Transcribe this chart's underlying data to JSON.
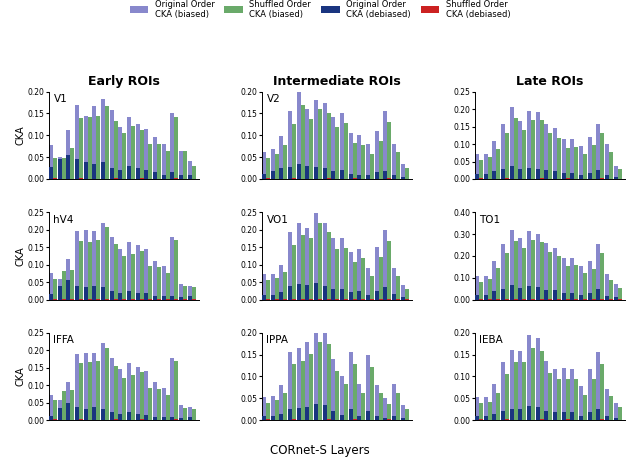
{
  "col_titles": [
    "Early ROIs",
    "Intermediate ROIs",
    "Late ROIs"
  ],
  "xlabel": "CORnet-S Layers",
  "subplot_labels": [
    [
      "V1",
      "V2",
      ""
    ],
    [
      "hV4",
      "VO1",
      "TO1"
    ],
    [
      "IFFA",
      "IPPA",
      "IEBA"
    ]
  ],
  "ylims": [
    [
      [
        0,
        0.2
      ],
      [
        0,
        0.25
      ],
      [
        0,
        0.25
      ]
    ],
    [
      [
        0,
        0.2
      ],
      [
        0,
        0.25
      ],
      [
        0,
        0.2
      ]
    ],
    [
      [
        0,
        0.25
      ],
      [
        0,
        0.4
      ],
      [
        0,
        0.2
      ]
    ]
  ],
  "ytick_step": [
    [
      [
        0.05,
        4
      ],
      [
        0.05,
        5
      ],
      [
        0.05,
        5
      ]
    ],
    [
      [
        0.05,
        4
      ],
      [
        0.05,
        5
      ],
      [
        0.05,
        4
      ]
    ],
    [
      [
        0.05,
        5
      ],
      [
        0.1,
        4
      ],
      [
        0.05,
        4
      ]
    ]
  ],
  "colors": {
    "orig_biased": "#8888CC",
    "shuf_biased": "#6aaa6a",
    "orig_debiased": "#1a3580",
    "shuf_debiased": "#cc2222"
  },
  "n_bars": 17,
  "data": {
    "V1": {
      "orig_biased": [
        0.078,
        0.05,
        0.112,
        0.17,
        0.145,
        0.168,
        0.182,
        0.157,
        0.12,
        0.143,
        0.125,
        0.115,
        0.095,
        0.08,
        0.15,
        0.065,
        0.042
      ],
      "shuf_biased": [
        0.048,
        0.048,
        0.07,
        0.14,
        0.143,
        0.145,
        0.168,
        0.133,
        0.106,
        0.122,
        0.113,
        0.08,
        0.08,
        0.063,
        0.143,
        0.063,
        0.03
      ],
      "orig_debiased": [
        0.028,
        0.045,
        0.055,
        0.045,
        0.04,
        0.035,
        0.04,
        0.025,
        0.02,
        0.03,
        0.025,
        0.02,
        0.015,
        0.01,
        0.015,
        0.01,
        0.01
      ],
      "shuf_debiased": [
        0.002,
        0.001,
        0.001,
        0.002,
        0.001,
        0.001,
        0.001,
        0.002,
        0.001,
        0.001,
        0.002,
        0.001,
        0.001,
        0.001,
        0.002,
        0.001,
        0.001
      ]
    },
    "V2": {
      "orig_biased": [
        0.075,
        0.06,
        0.115,
        0.195,
        0.2,
        0.195,
        0.22,
        0.18,
        0.145,
        0.165,
        0.155,
        0.145,
        0.11,
        0.095,
        0.18,
        0.045,
        0.04
      ],
      "shuf_biased": [
        0.058,
        0.082,
        0.085,
        0.168,
        0.165,
        0.17,
        0.208,
        0.158,
        0.125,
        0.13,
        0.14,
        0.095,
        0.093,
        0.076,
        0.17,
        0.038,
        0.035
      ],
      "orig_debiased": [
        0.015,
        0.038,
        0.055,
        0.04,
        0.035,
        0.04,
        0.035,
        0.025,
        0.02,
        0.025,
        0.02,
        0.018,
        0.01,
        0.01,
        0.01,
        0.008,
        0.01
      ],
      "shuf_debiased": [
        0.002,
        0.001,
        0.001,
        0.002,
        0.001,
        0.001,
        0.001,
        0.002,
        0.001,
        0.001,
        0.002,
        0.001,
        0.001,
        0.001,
        0.002,
        0.001,
        0.001
      ]
    },
    "V2b": {
      "orig_biased": [
        0.072,
        0.058,
        0.108,
        0.19,
        0.192,
        0.192,
        0.22,
        0.178,
        0.145,
        0.163,
        0.153,
        0.14,
        0.108,
        0.093,
        0.178,
        0.043,
        0.038
      ],
      "shuf_biased": [
        0.058,
        0.082,
        0.085,
        0.163,
        0.165,
        0.168,
        0.207,
        0.155,
        0.122,
        0.128,
        0.138,
        0.093,
        0.09,
        0.073,
        0.168,
        0.035,
        0.033
      ],
      "orig_debiased": [
        0.013,
        0.035,
        0.05,
        0.038,
        0.033,
        0.038,
        0.033,
        0.023,
        0.018,
        0.023,
        0.018,
        0.015,
        0.008,
        0.008,
        0.008,
        0.005,
        0.008
      ],
      "shuf_debiased": [
        0.002,
        0.001,
        0.001,
        0.002,
        0.001,
        0.001,
        0.001,
        0.002,
        0.001,
        0.001,
        0.002,
        0.001,
        0.001,
        0.001,
        0.002,
        0.001,
        0.001
      ]
    },
    "hV4": {
      "orig_biased": [
        0.062,
        0.068,
        0.098,
        0.155,
        0.198,
        0.16,
        0.18,
        0.175,
        0.143,
        0.15,
        0.105,
        0.1,
        0.08,
        0.11,
        0.155,
        0.08,
        0.035
      ],
      "shuf_biased": [
        0.048,
        0.058,
        0.078,
        0.127,
        0.17,
        0.138,
        0.16,
        0.152,
        0.118,
        0.128,
        0.082,
        0.078,
        0.058,
        0.088,
        0.13,
        0.062,
        0.025
      ],
      "orig_debiased": [
        0.012,
        0.018,
        0.025,
        0.028,
        0.035,
        0.03,
        0.028,
        0.025,
        0.018,
        0.02,
        0.012,
        0.01,
        0.008,
        0.015,
        0.018,
        0.01,
        0.004
      ],
      "shuf_debiased": [
        0.002,
        0.001,
        0.001,
        0.002,
        0.001,
        0.001,
        0.001,
        0.002,
        0.001,
        0.001,
        0.002,
        0.001,
        0.001,
        0.001,
        0.002,
        0.001,
        0.001
      ]
    },
    "VO1": {
      "orig_biased": [
        0.072,
        0.072,
        0.098,
        0.192,
        0.22,
        0.205,
        0.248,
        0.22,
        0.175,
        0.175,
        0.135,
        0.145,
        0.09,
        0.15,
        0.2,
        0.09,
        0.042
      ],
      "shuf_biased": [
        0.055,
        0.062,
        0.078,
        0.155,
        0.185,
        0.175,
        0.218,
        0.192,
        0.145,
        0.148,
        0.108,
        0.118,
        0.068,
        0.122,
        0.168,
        0.068,
        0.03
      ],
      "orig_debiased": [
        0.014,
        0.014,
        0.022,
        0.038,
        0.045,
        0.042,
        0.048,
        0.04,
        0.03,
        0.03,
        0.022,
        0.025,
        0.012,
        0.025,
        0.035,
        0.015,
        0.006
      ],
      "shuf_debiased": [
        0.002,
        0.001,
        0.001,
        0.002,
        0.001,
        0.001,
        0.001,
        0.002,
        0.001,
        0.001,
        0.002,
        0.001,
        0.001,
        0.001,
        0.002,
        0.001,
        0.001
      ]
    },
    "TO1": {
      "orig_biased": [
        0.052,
        0.055,
        0.08,
        0.155,
        0.165,
        0.178,
        0.21,
        0.205,
        0.14,
        0.102,
        0.155,
        0.082,
        0.15,
        0.08,
        0.05,
        0.082,
        0.035
      ],
      "shuf_biased": [
        0.04,
        0.045,
        0.062,
        0.128,
        0.135,
        0.152,
        0.18,
        0.175,
        0.112,
        0.082,
        0.128,
        0.062,
        0.122,
        0.062,
        0.038,
        0.062,
        0.025
      ],
      "orig_debiased": [
        0.01,
        0.01,
        0.015,
        0.025,
        0.028,
        0.03,
        0.038,
        0.035,
        0.022,
        0.012,
        0.025,
        0.01,
        0.022,
        0.01,
        0.006,
        0.01,
        0.004
      ],
      "shuf_debiased": [
        0.002,
        0.001,
        0.001,
        0.002,
        0.001,
        0.001,
        0.001,
        0.002,
        0.001,
        0.001,
        0.002,
        0.001,
        0.001,
        0.001,
        0.002,
        0.001,
        0.001
      ]
    },
    "IFFA": {
      "orig_biased": [
        0.072,
        0.072,
        0.108,
        0.158,
        0.205,
        0.165,
        0.195,
        0.192,
        0.158,
        0.145,
        0.115,
        0.115,
        0.095,
        0.12,
        0.158,
        0.1,
        0.038
      ],
      "shuf_biased": [
        0.055,
        0.062,
        0.085,
        0.132,
        0.175,
        0.14,
        0.17,
        0.168,
        0.132,
        0.118,
        0.09,
        0.092,
        0.072,
        0.098,
        0.132,
        0.078,
        0.028
      ],
      "orig_debiased": [
        0.014,
        0.014,
        0.022,
        0.028,
        0.038,
        0.028,
        0.032,
        0.03,
        0.025,
        0.022,
        0.018,
        0.018,
        0.012,
        0.018,
        0.025,
        0.012,
        0.005
      ],
      "shuf_debiased": [
        0.002,
        0.001,
        0.001,
        0.002,
        0.001,
        0.001,
        0.001,
        0.002,
        0.001,
        0.001,
        0.002,
        0.001,
        0.001,
        0.001,
        0.002,
        0.001,
        0.001
      ]
    },
    "IPPA": {
      "orig_biased": [
        0.108,
        0.108,
        0.175,
        0.255,
        0.32,
        0.282,
        0.312,
        0.302,
        0.258,
        0.238,
        0.188,
        0.192,
        0.155,
        0.175,
        0.255,
        0.115,
        0.072
      ],
      "shuf_biased": [
        0.082,
        0.092,
        0.145,
        0.212,
        0.27,
        0.238,
        0.272,
        0.262,
        0.218,
        0.198,
        0.155,
        0.158,
        0.122,
        0.142,
        0.212,
        0.088,
        0.055
      ],
      "orig_debiased": [
        0.022,
        0.022,
        0.038,
        0.048,
        0.065,
        0.055,
        0.062,
        0.058,
        0.045,
        0.042,
        0.032,
        0.032,
        0.022,
        0.03,
        0.048,
        0.018,
        0.01
      ],
      "shuf_debiased": [
        0.002,
        0.001,
        0.001,
        0.002,
        0.001,
        0.001,
        0.001,
        0.002,
        0.001,
        0.001,
        0.002,
        0.001,
        0.001,
        0.001,
        0.002,
        0.001,
        0.001
      ]
    },
    "IEBA": {
      "orig_biased": [
        0.052,
        0.052,
        0.082,
        0.132,
        0.16,
        0.158,
        0.195,
        0.188,
        0.135,
        0.118,
        0.12,
        0.118,
        0.078,
        0.118,
        0.155,
        0.072,
        0.04
      ],
      "shuf_biased": [
        0.04,
        0.042,
        0.062,
        0.105,
        0.132,
        0.132,
        0.165,
        0.158,
        0.108,
        0.095,
        0.095,
        0.095,
        0.058,
        0.095,
        0.128,
        0.055,
        0.03
      ],
      "orig_debiased": [
        0.01,
        0.01,
        0.015,
        0.022,
        0.025,
        0.025,
        0.032,
        0.03,
        0.02,
        0.018,
        0.018,
        0.018,
        0.01,
        0.018,
        0.025,
        0.01,
        0.005
      ],
      "shuf_debiased": [
        0.002,
        0.001,
        0.001,
        0.002,
        0.001,
        0.001,
        0.001,
        0.002,
        0.001,
        0.001,
        0.002,
        0.001,
        0.001,
        0.001,
        0.002,
        0.001,
        0.001
      ]
    }
  }
}
